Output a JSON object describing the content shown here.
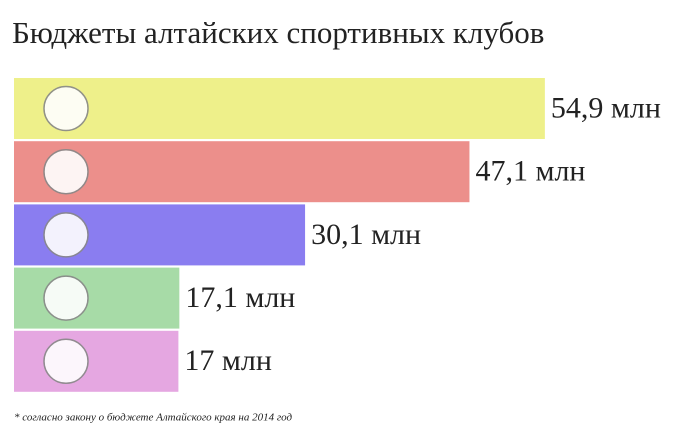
{
  "chart_data": {
    "type": "hbar",
    "title": "Бюджеты алтайских спортивных клубов",
    "categories": [
      null,
      null,
      null,
      null,
      null
    ],
    "values": [
      54.9,
      47.1,
      30.1,
      17.1,
      17
    ],
    "value_labels": [
      "54,9 млн",
      "47,1 млн",
      "30,1 млн",
      "17,1 млн",
      "17 млн"
    ],
    "colors": [
      "#eef08a",
      "#ec8f8b",
      "#8a7df0",
      "#a7dba7",
      "#e5a7e1"
    ],
    "footnote": "* согласно закону о бюджете Алтайского края на 2014 год"
  }
}
